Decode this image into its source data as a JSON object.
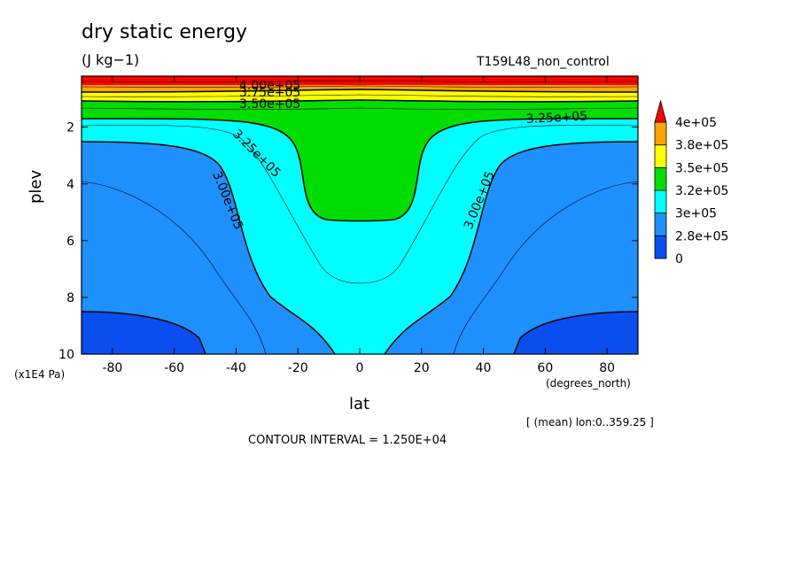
{
  "title": "dry static energy",
  "units": "(J kg−1)",
  "run_name": "T159L48_non_control",
  "y_unit_note": "(x1E4 Pa)",
  "x_units": "(degrees_north)",
  "mean_note": "[ (mean) lon:0..359.25 ]",
  "interval_note": "CONTOUR INTERVAL = 1.250E+04",
  "chart_data": {
    "type": "contour",
    "variable": "dry static energy",
    "xlabel": "lat",
    "ylabel": "plev",
    "xlim": [
      -90,
      90
    ],
    "ylim": [
      10,
      0.2
    ],
    "x_ticks": [
      -80,
      -60,
      -40,
      -20,
      0,
      20,
      40,
      60,
      80
    ],
    "y_ticks": [
      2,
      4,
      6,
      8,
      10
    ],
    "levels": [
      {
        "value": 0,
        "label": "0",
        "color": "#0a4ef0"
      },
      {
        "value": 280000,
        "label": "2.8e+05",
        "color": "#1e90ff"
      },
      {
        "value": 300000,
        "label": "3e+05",
        "color": "#00ffff"
      },
      {
        "value": 320000,
        "label": "3.2e+05",
        "color": "#00dd00"
      },
      {
        "value": 350000,
        "label": "3.5e+05",
        "color": "#ffff00"
      },
      {
        "value": 380000,
        "label": "3.8e+05",
        "color": "#ffa500"
      },
      {
        "value": 400000,
        "label": "4e+05",
        "color": "#ff0000"
      }
    ],
    "contour_labels": [
      "4.00e+05",
      "3.75e+05",
      "3.50e+05",
      "3.25e+05",
      "3.25e+05",
      "3.00e+05",
      "3.00e+05"
    ],
    "contour_interval": 12500,
    "colorbar_extend": "max"
  }
}
